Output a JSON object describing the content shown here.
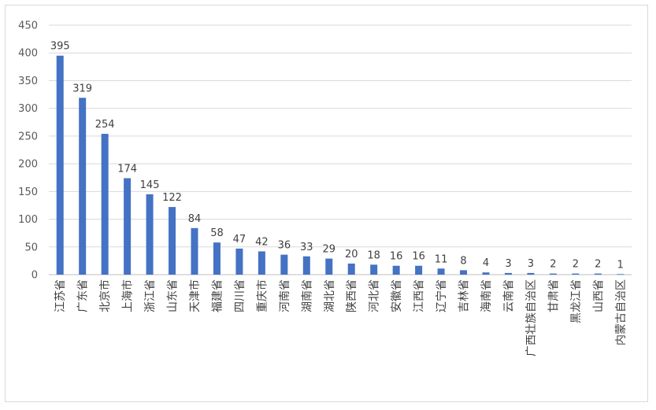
{
  "chart_data": {
    "type": "bar",
    "title": "",
    "xlabel": "",
    "ylabel": "",
    "ylim": [
      0,
      450
    ],
    "yticks": [
      0,
      50,
      100,
      150,
      200,
      250,
      300,
      350,
      400,
      450
    ],
    "grid": true,
    "legend": "none",
    "bar_color": "#4472C4",
    "categories": [
      "江苏省",
      "广东省",
      "北京市",
      "上海市",
      "浙江省",
      "山东省",
      "天津市",
      "福建省",
      "四川省",
      "重庆市",
      "河南省",
      "湖南省",
      "湖北省",
      "陕西省",
      "河北省",
      "安徽省",
      "江西省",
      "辽宁省",
      "吉林省",
      "海南省",
      "云南省",
      "广西壮族自治区",
      "甘肃省",
      "黑龙江省",
      "山西省",
      "内蒙古自治区"
    ],
    "values": [
      395,
      319,
      254,
      174,
      145,
      122,
      84,
      58,
      47,
      42,
      36,
      33,
      29,
      20,
      18,
      16,
      16,
      11,
      8,
      4,
      3,
      3,
      2,
      2,
      2,
      1
    ]
  }
}
